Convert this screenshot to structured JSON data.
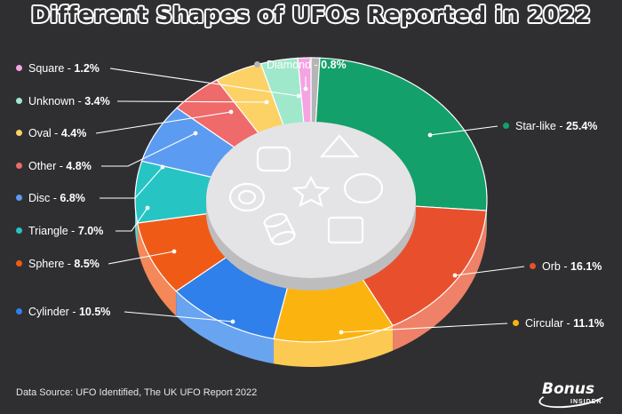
{
  "title": "Different Shapes of UFOs Reported in 2022",
  "source": "Data Source: UFO Identified, The UK UFO Report 2022",
  "logo": {
    "brand": "Bonus",
    "sub": "INSIDER"
  },
  "colors": {
    "background": "#2f2f31",
    "title": "#ffffff",
    "center_disk": "#e4e4e6"
  },
  "center_icons": [
    "rounded-square-icon",
    "triangle-icon",
    "ring-icon",
    "star-icon",
    "circle-icon",
    "cylinder-icon",
    "square-icon"
  ],
  "chart_data": {
    "type": "pie",
    "style": "3d-donut",
    "start": "Diamond at top, clockwise through Star-like",
    "legend": "callout labels",
    "series": [
      {
        "name": "Diamond",
        "value": 0.8,
        "label": "Diamond",
        "value_text": "0.8%",
        "color": "#b5b5b5"
      },
      {
        "name": "Star-like",
        "value": 25.4,
        "label": "Star-like",
        "value_text": "25.4%",
        "color": "#13a06b"
      },
      {
        "name": "Orb",
        "value": 16.1,
        "label": "Orb",
        "value_text": "16.1%",
        "color": "#e8502d"
      },
      {
        "name": "Circular",
        "value": 11.1,
        "label": "Circular",
        "value_text": "11.1%",
        "color": "#fbb40f"
      },
      {
        "name": "Cylinder",
        "value": 10.5,
        "label": "Cylinder",
        "value_text": "10.5%",
        "color": "#2f80ea"
      },
      {
        "name": "Sphere",
        "value": 8.5,
        "label": "Sphere",
        "value_text": "8.5%",
        "color": "#f05a17"
      },
      {
        "name": "Triangle",
        "value": 7.0,
        "label": "Triangle",
        "value_text": "7.0%",
        "color": "#27c4c4"
      },
      {
        "name": "Disc",
        "value": 6.8,
        "label": "Disc",
        "value_text": "6.8%",
        "color": "#5b9cf2"
      },
      {
        "name": "Other",
        "value": 4.8,
        "label": "Other",
        "value_text": "4.8%",
        "color": "#ef6a6a"
      },
      {
        "name": "Oval",
        "value": 4.4,
        "label": "Oval",
        "value_text": "4.4%",
        "color": "#fcd266"
      },
      {
        "name": "Unknown",
        "value": 3.4,
        "label": "Unknown",
        "value_text": "3.4%",
        "color": "#9fe8cc"
      },
      {
        "name": "Square",
        "value": 1.2,
        "label": "Square",
        "value_text": "1.2%",
        "color": "#f4a3e3"
      }
    ]
  }
}
